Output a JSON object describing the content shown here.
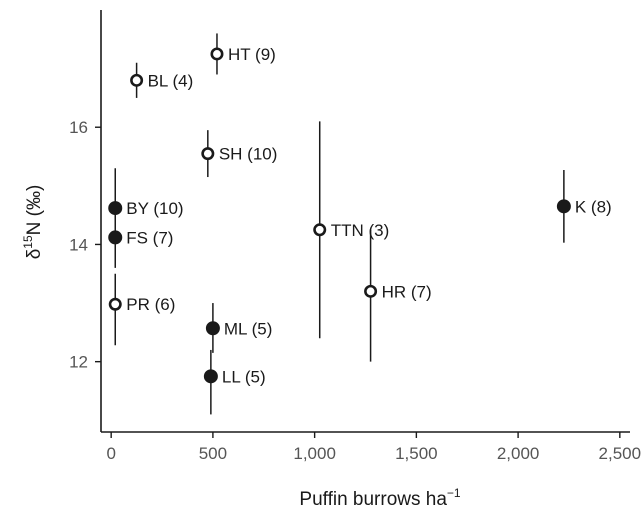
{
  "chart_data": {
    "type": "scatter",
    "title": "",
    "xlabel": "Puffin burrows ha",
    "xlabel_superscript": "−1",
    "ylabel_prefix": "δ",
    "ylabel_superscript": "15",
    "ylabel_suffix": "N (‰)",
    "xlim": [
      -50,
      2550
    ],
    "ylim": [
      10.8,
      18.0
    ],
    "x_ticks": [
      0,
      500,
      1000,
      1500,
      2000,
      2500
    ],
    "x_tick_labels": [
      "0",
      "500",
      "1,000",
      "1,500",
      "2,000",
      "2,500"
    ],
    "y_ticks": [
      12,
      14,
      16
    ],
    "y_tick_labels": [
      "12",
      "14",
      "16"
    ],
    "grid": false,
    "legend": "none",
    "marker_colors": {
      "filled": "#1a1a1a",
      "open_fill": "#ffffff",
      "stroke": "#1a1a1a"
    },
    "points": [
      {
        "label": "HT (9)",
        "x": 520,
        "y": 17.25,
        "err_low": 16.9,
        "err_high": 17.6,
        "filled": false,
        "label_side": "right"
      },
      {
        "label": "BL (4)",
        "x": 125,
        "y": 16.8,
        "err_low": 16.5,
        "err_high": 17.1,
        "filled": false,
        "label_side": "right"
      },
      {
        "label": "SH (10)",
        "x": 475,
        "y": 15.55,
        "err_low": 15.15,
        "err_high": 15.95,
        "filled": false,
        "label_side": "right"
      },
      {
        "label": "BY (10)",
        "x": 20,
        "y": 14.62,
        "err_low": 13.95,
        "err_high": 15.3,
        "filled": true,
        "label_side": "right"
      },
      {
        "label": "FS (7)",
        "x": 20,
        "y": 14.12,
        "err_low": 13.6,
        "err_high": 14.65,
        "filled": true,
        "label_side": "right"
      },
      {
        "label": "PR (6)",
        "x": 20,
        "y": 12.98,
        "err_low": 12.28,
        "err_high": 13.5,
        "filled": false,
        "label_side": "right"
      },
      {
        "label": "TTN (3)",
        "x": 1025,
        "y": 14.25,
        "err_low": 12.4,
        "err_high": 16.1,
        "filled": false,
        "label_side": "right"
      },
      {
        "label": "HR (7)",
        "x": 1275,
        "y": 13.2,
        "err_low": 12.0,
        "err_high": 14.25,
        "filled": false,
        "label_side": "right"
      },
      {
        "label": "K (8)",
        "x": 2225,
        "y": 14.65,
        "err_low": 14.03,
        "err_high": 15.27,
        "filled": true,
        "label_side": "right"
      },
      {
        "label": "ML (5)",
        "x": 500,
        "y": 12.57,
        "err_low": 12.15,
        "err_high": 13.0,
        "filled": true,
        "label_side": "right"
      },
      {
        "label": "LL (5)",
        "x": 490,
        "y": 11.75,
        "err_low": 11.1,
        "err_high": 12.2,
        "filled": true,
        "label_side": "right"
      }
    ]
  }
}
